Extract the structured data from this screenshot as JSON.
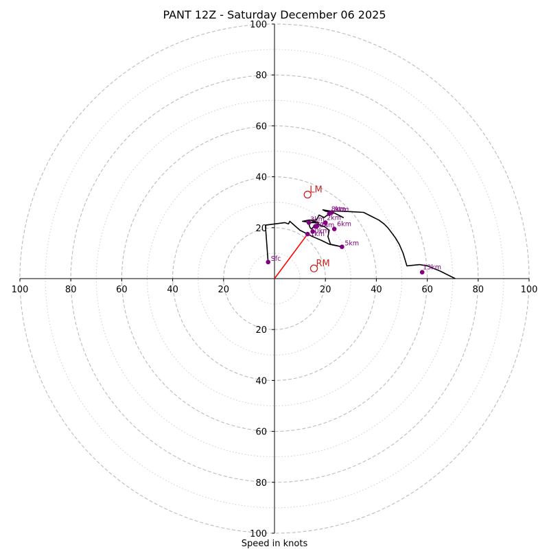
{
  "chart_data": {
    "type": "hodograph",
    "title": "PANT 12Z - Saturday December 06 2025",
    "xlabel": "Speed in knots",
    "x_range": [
      -100,
      100
    ],
    "y_range": [
      -100,
      100
    ],
    "rings_major": [
      20,
      40,
      60,
      80,
      100
    ],
    "rings_minor": [
      10,
      30,
      50,
      70,
      90
    ],
    "x_ticks": [
      {
        "value": -100,
        "label": "100"
      },
      {
        "value": -80,
        "label": "80"
      },
      {
        "value": -60,
        "label": "60"
      },
      {
        "value": -40,
        "label": "40"
      },
      {
        "value": -20,
        "label": "20"
      },
      {
        "value": 20,
        "label": "20"
      },
      {
        "value": 40,
        "label": "40"
      },
      {
        "value": 60,
        "label": "60"
      },
      {
        "value": 80,
        "label": "80"
      },
      {
        "value": 100,
        "label": "100"
      }
    ],
    "y_ticks": [
      {
        "value": 100,
        "label": "100"
      },
      {
        "value": 80,
        "label": "80"
      },
      {
        "value": 60,
        "label": "60"
      },
      {
        "value": 40,
        "label": "40"
      },
      {
        "value": 20,
        "label": "20"
      },
      {
        "value": -20,
        "label": "20"
      },
      {
        "value": -40,
        "label": "40"
      },
      {
        "value": -60,
        "label": "60"
      },
      {
        "value": -80,
        "label": "80"
      },
      {
        "value": -100,
        "label": "100"
      }
    ],
    "wind_trace": [
      [
        -2.5,
        6.5
      ],
      [
        -3.5,
        20
      ],
      [
        -3.5,
        21
      ],
      [
        4,
        22
      ],
      [
        5.5,
        21.5
      ],
      [
        6,
        22.5
      ],
      [
        10,
        19
      ],
      [
        13,
        17.5
      ],
      [
        15,
        16.5
      ],
      [
        18.5,
        15
      ],
      [
        21.5,
        13.5
      ],
      [
        24,
        13
      ],
      [
        26.5,
        12.5
      ],
      [
        22,
        13.5
      ],
      [
        21,
        16.5
      ],
      [
        21.5,
        19
      ],
      [
        19.5,
        20.5
      ],
      [
        18,
        21
      ],
      [
        17,
        21.5
      ],
      [
        15.5,
        20.5
      ],
      [
        14.5,
        19.5
      ],
      [
        14,
        20
      ],
      [
        13.5,
        21.5
      ],
      [
        15.5,
        22.5
      ],
      [
        17.5,
        22
      ],
      [
        14.5,
        22
      ],
      [
        11,
        22.5
      ],
      [
        13.5,
        23
      ],
      [
        16.5,
        23
      ],
      [
        17.5,
        25
      ],
      [
        19.5,
        24
      ],
      [
        21.5,
        25.5
      ],
      [
        22,
        26.5
      ],
      [
        24,
        25.5
      ],
      [
        27,
        24
      ],
      [
        25,
        25
      ],
      [
        23,
        26
      ],
      [
        20,
        26.5
      ],
      [
        19,
        27
      ],
      [
        22,
        26.5
      ],
      [
        25,
        26.5
      ],
      [
        30,
        26.3
      ],
      [
        35,
        26
      ],
      [
        38,
        24.5
      ],
      [
        41,
        23
      ],
      [
        43,
        21.5
      ],
      [
        44.5,
        20
      ],
      [
        46,
        18
      ],
      [
        47.5,
        16
      ],
      [
        49,
        13.5
      ],
      [
        50.5,
        10
      ],
      [
        52,
        5
      ],
      [
        57,
        5.5
      ],
      [
        60,
        5
      ],
      [
        65,
        3
      ],
      [
        71,
        0
      ]
    ],
    "height_markers": [
      {
        "label": "Sfc",
        "u": -2.5,
        "v": 6.5,
        "label_dx": 4,
        "label_dy": -2
      },
      {
        "label": "1km",
        "u": 13,
        "v": 17.5,
        "label_dx": 4,
        "label_dy": 3
      },
      {
        "label": "2km",
        "u": 20,
        "v": 22,
        "label_dx": 2,
        "label_dy": -4
      },
      {
        "label": "3km",
        "u": 13.5,
        "v": 22,
        "label_dx": 2,
        "label_dy": -2
      },
      {
        "label": "4km",
        "u": 16.5,
        "v": 20.5,
        "label_dx": -4,
        "label_dy": 1
      },
      {
        "label": "5km",
        "u": 26.5,
        "v": 12.5,
        "label_dx": 4,
        "label_dy": -2
      },
      {
        "label": "6km",
        "u": 23.5,
        "v": 19.5,
        "label_dx": 4,
        "label_dy": -4
      },
      {
        "label": "8km",
        "u": 21.5,
        "v": 25.5,
        "label_dx": 3,
        "label_dy": -4
      },
      {
        "label": "9km",
        "u": 22.5,
        "v": 26,
        "label_dx": 4,
        "label_dy": -1
      },
      {
        "label": "10km",
        "u": 15,
        "v": 18.5,
        "label_dx": -3,
        "label_dy": 2
      },
      {
        "label": "12km",
        "u": 16,
        "v": 20.5,
        "label_dx": 1,
        "label_dy": 1
      },
      {
        "label": "13km",
        "u": 58,
        "v": 2.5,
        "label_dx": 1,
        "label_dy": -4
      }
    ],
    "storm_motion": [
      {
        "label": "LM",
        "u": 13,
        "v": 33
      },
      {
        "label": "RM",
        "u": 15.5,
        "v": 4
      }
    ],
    "mean_wind_vector": {
      "u": 13,
      "v": 17.5
    },
    "colors": {
      "trace": "#000000",
      "markers": "#800080",
      "motion": "#cc2222",
      "vector": "#ff0000",
      "ring": "#bbbbbb",
      "axis": "#000000"
    }
  }
}
